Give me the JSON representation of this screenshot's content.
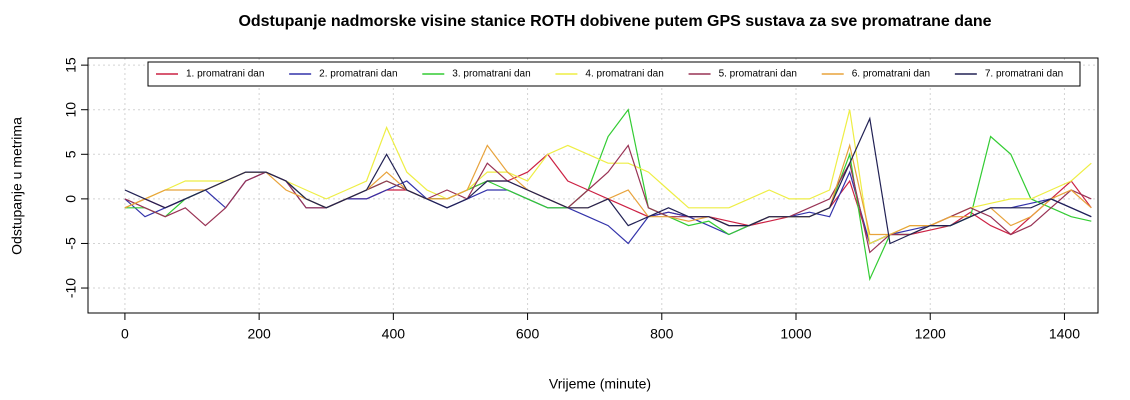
{
  "chart_data": {
    "type": "line",
    "title": "Odstupanje nadmorske visine stanice ROTH dobivene putem GPS sustava za sve promatrane dane",
    "xlabel": "Vrijeme (minute)",
    "ylabel": "Odstupanje u metrima",
    "x": [
      0,
      30,
      60,
      90,
      120,
      150,
      180,
      210,
      240,
      270,
      300,
      330,
      360,
      390,
      420,
      450,
      480,
      510,
      540,
      570,
      600,
      630,
      660,
      690,
      720,
      750,
      780,
      810,
      840,
      870,
      900,
      930,
      960,
      990,
      1020,
      1050,
      1080,
      1110,
      1140,
      1170,
      1200,
      1230,
      1260,
      1290,
      1320,
      1350,
      1380,
      1410,
      1440
    ],
    "xlim": [
      -55,
      1450
    ],
    "ylim": [
      -12.8,
      15.8
    ],
    "xticks": [
      0,
      200,
      400,
      600,
      800,
      1000,
      1200,
      1400
    ],
    "yticks": [
      -10,
      -5,
      0,
      5,
      10,
      15
    ],
    "grid": true,
    "legend": "top",
    "series": [
      {
        "name": "1. promatrani dan",
        "color": "#cc2244",
        "values": [
          -1,
          0,
          -1,
          0,
          1,
          2,
          3,
          3,
          2,
          0,
          -1,
          0,
          0,
          1,
          1,
          0,
          0,
          1,
          2,
          2,
          3,
          5,
          2,
          1,
          0,
          -1,
          -2,
          -1.5,
          -2,
          -2,
          -2.5,
          -3,
          -2.5,
          -2,
          -2,
          -1,
          2,
          -5,
          -4,
          -4,
          -3.5,
          -3,
          -1.5,
          -3,
          -4,
          -2,
          0,
          2,
          -1
        ]
      },
      {
        "name": "2. promatrani dan",
        "color": "#3333aa",
        "values": [
          0,
          -2,
          -1,
          0,
          1,
          -1,
          2,
          3,
          2,
          -1,
          -1,
          0,
          0,
          1,
          2,
          0,
          -1,
          0,
          1,
          1,
          0,
          -1,
          -1,
          -2,
          -3,
          -5,
          -2,
          -1.5,
          -2,
          -3,
          -4,
          -3,
          -2,
          -2,
          -1.5,
          -2,
          3,
          -5,
          -4,
          -3.5,
          -3,
          -3,
          -2,
          -1,
          -1,
          -0.5,
          0,
          -1,
          -2
        ]
      },
      {
        "name": "3. promatrani dan",
        "color": "#33cc33",
        "values": [
          -1,
          -1,
          -2,
          0,
          1,
          2,
          3,
          3,
          2,
          0,
          -1,
          0,
          1,
          2,
          1,
          0,
          0,
          1,
          2,
          1,
          0,
          -1,
          -1,
          1,
          7,
          10,
          -1,
          -2,
          -3,
          -2.5,
          -4,
          -3,
          -2,
          -2,
          -2,
          -1,
          5,
          -9,
          -4,
          -4,
          -3,
          -3,
          -2,
          7,
          5,
          0,
          -1,
          -2,
          -2.5
        ]
      },
      {
        "name": "4. promatrani dan",
        "color": "#eeee44",
        "values": [
          -1,
          0,
          1,
          2,
          2,
          2,
          3,
          3,
          2,
          1,
          0,
          1,
          2,
          8,
          3,
          1,
          0,
          1,
          3,
          3,
          2,
          5,
          6,
          5,
          4,
          4,
          3,
          1,
          -1,
          -1,
          -1,
          0,
          1,
          0,
          0,
          1,
          10,
          -5,
          -4,
          -3,
          -3,
          -2,
          -1,
          -0.5,
          0,
          0,
          1,
          2,
          4
        ]
      },
      {
        "name": "5. promatrani dan",
        "color": "#993355",
        "values": [
          0,
          -1,
          -2,
          -1,
          -3,
          -1,
          2,
          3,
          2,
          -1,
          -1,
          0,
          1,
          2,
          1,
          0,
          1,
          0,
          4,
          2,
          1,
          0,
          -1,
          1,
          3,
          6,
          -1,
          -2,
          -2,
          -2,
          -3,
          -3,
          -2,
          -2,
          -1,
          0,
          4,
          -6,
          -4,
          -4,
          -3,
          -2,
          -1,
          -2,
          -4,
          -3,
          -1,
          1,
          0
        ]
      },
      {
        "name": "6. promatrani dan",
        "color": "#e8a33c",
        "values": [
          -1,
          0,
          1,
          1,
          1,
          2,
          3,
          3,
          1,
          0,
          -1,
          0,
          1,
          3,
          1,
          0,
          0,
          1,
          6,
          3,
          1,
          0,
          -1,
          -1,
          0,
          1,
          -2,
          -2,
          -2.5,
          -2,
          -3,
          -3,
          -2,
          -2,
          -2,
          -1,
          6,
          -4,
          -4,
          -3,
          -3,
          -2,
          -2,
          -1,
          -3,
          -2,
          0,
          1,
          -1
        ]
      },
      {
        "name": "7. promatrani dan",
        "color": "#222255",
        "values": [
          1,
          0,
          -1,
          0,
          1,
          2,
          3,
          3,
          2,
          0,
          -1,
          0,
          1,
          5,
          1,
          0,
          -1,
          0,
          2,
          2,
          1,
          0,
          -1,
          -1,
          0,
          -3,
          -2,
          -1,
          -2,
          -2,
          -3,
          -3,
          -2,
          -2,
          -2,
          -1,
          4,
          9,
          -5,
          -4,
          -3,
          -3,
          -2,
          -1,
          -1,
          -1,
          0,
          -1,
          -2
        ]
      }
    ]
  }
}
